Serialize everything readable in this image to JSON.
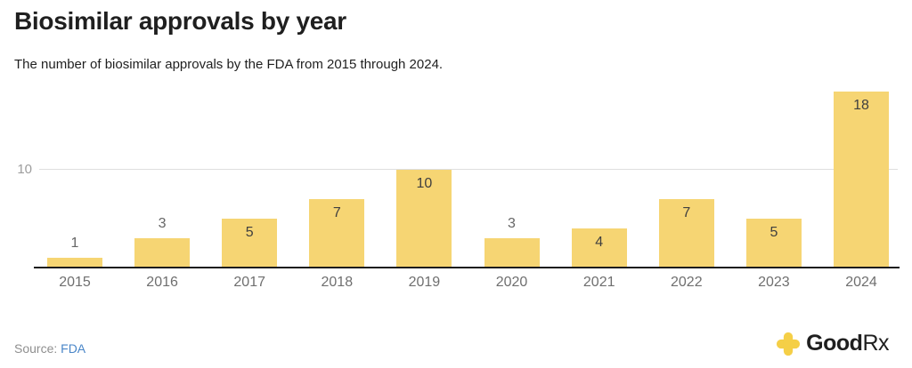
{
  "header": {
    "title": "Biosimilar approvals by year",
    "subtitle": "The number of biosimilar approvals by the FDA from 2015 through 2024."
  },
  "chart_data": {
    "type": "bar",
    "categories": [
      "2015",
      "2016",
      "2017",
      "2018",
      "2019",
      "2020",
      "2021",
      "2022",
      "2023",
      "2024"
    ],
    "values": [
      1,
      3,
      5,
      7,
      10,
      3,
      4,
      7,
      5,
      18
    ],
    "title": "Biosimilar approvals by year",
    "xlabel": "",
    "ylabel": "",
    "ylim": [
      0,
      18
    ],
    "yticks": [
      10
    ],
    "ytick_labels": [
      "10"
    ],
    "grid": "single horizontal gridline at y=10",
    "legend": "none",
    "bar_color": "#F6D573",
    "value_label_rule": "inside bar top when value >= 4, above bar otherwise"
  },
  "footer": {
    "source_prefix": "Source: ",
    "source_link_text": "FDA",
    "link_color": "#4A86C8"
  },
  "brand": {
    "name": "GoodRx",
    "wordmark_bold": "Good",
    "wordmark_light": "Rx",
    "icon": "goodrx-cross-icon",
    "icon_color": "#F5CF47"
  }
}
